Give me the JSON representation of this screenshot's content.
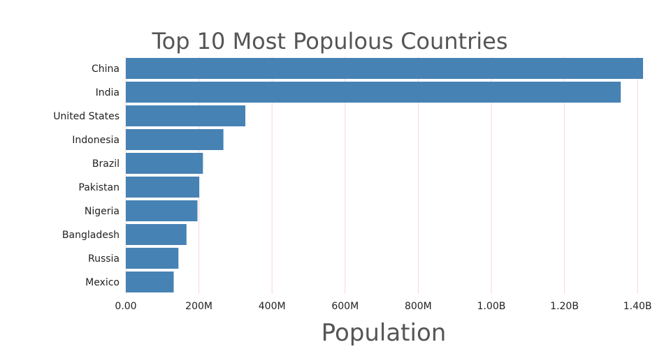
{
  "chart_data": {
    "type": "bar",
    "orientation": "horizontal",
    "title": "Top 10 Most Populous Countries",
    "xlabel": "Population",
    "ylabel": "",
    "categories": [
      "China",
      "India",
      "United States",
      "Indonesia",
      "Brazil",
      "Pakistan",
      "Nigeria",
      "Bangladesh",
      "Russia",
      "Mexico"
    ],
    "values": [
      1415000000,
      1354000000,
      327000000,
      267000000,
      211000000,
      201000000,
      196000000,
      166000000,
      144000000,
      131000000
    ],
    "xlim": [
      0,
      1415000000
    ],
    "x_ticks": [
      0,
      200000000,
      400000000,
      600000000,
      800000000,
      1000000000,
      1200000000,
      1400000000
    ],
    "x_tick_labels": [
      "0.00",
      "200M",
      "400M",
      "600M",
      "800M",
      "1.00B",
      "1.20B",
      "1.40B"
    ],
    "grid": true,
    "grid_color": "#fbd3d9",
    "bar_color": "#4682b4",
    "legend": false
  }
}
